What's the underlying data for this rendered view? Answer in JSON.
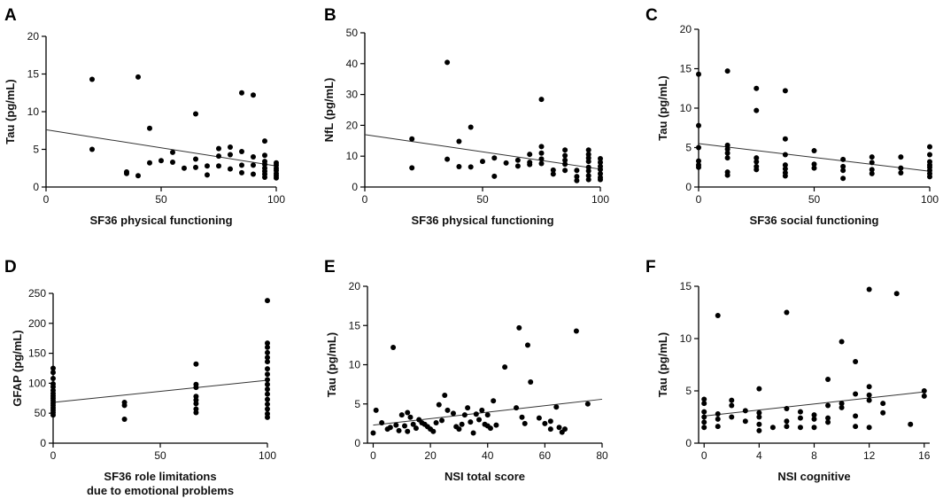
{
  "chart_data": [
    {
      "id": "A",
      "type": "scatter",
      "panel_label": "A",
      "xlabel": "SF36 physical functioning",
      "ylabel": "Tau  (pg/mL)",
      "xlim": [
        0,
        100
      ],
      "ylim": [
        0,
        20
      ],
      "xticks": [
        0,
        50,
        100
      ],
      "yticks": [
        0,
        5,
        10,
        15,
        20
      ],
      "trend": [
        [
          0,
          7.6
        ],
        [
          100,
          2.8
        ]
      ],
      "points": [
        [
          20,
          14.3
        ],
        [
          20,
          5
        ],
        [
          35,
          1.8
        ],
        [
          35,
          2
        ],
        [
          40,
          14.6
        ],
        [
          40,
          1.5
        ],
        [
          45,
          7.8
        ],
        [
          45,
          3.2
        ],
        [
          50,
          3.5
        ],
        [
          55,
          4.6
        ],
        [
          55,
          3.3
        ],
        [
          60,
          2.5
        ],
        [
          65,
          9.7
        ],
        [
          65,
          3.7
        ],
        [
          65,
          2.6
        ],
        [
          70,
          2.8
        ],
        [
          70,
          1.6
        ],
        [
          75,
          5.1
        ],
        [
          75,
          4.1
        ],
        [
          75,
          2.8
        ],
        [
          80,
          5.3
        ],
        [
          80,
          4.3
        ],
        [
          80,
          2.4
        ],
        [
          85,
          12.5
        ],
        [
          85,
          4.7
        ],
        [
          85,
          2.9
        ],
        [
          85,
          1.9
        ],
        [
          90,
          12.2
        ],
        [
          90,
          4
        ],
        [
          90,
          2.9
        ],
        [
          90,
          1.7
        ],
        [
          95,
          6.1
        ],
        [
          95,
          4.2
        ],
        [
          95,
          3.4
        ],
        [
          95,
          3
        ],
        [
          95,
          2.5
        ],
        [
          95,
          2.1
        ],
        [
          95,
          1.7
        ],
        [
          95,
          1.3
        ],
        [
          100,
          3.2
        ],
        [
          100,
          2.9
        ],
        [
          100,
          2.5
        ],
        [
          100,
          2.2
        ],
        [
          100,
          1.8
        ],
        [
          100,
          1.5
        ],
        [
          100,
          1.2
        ]
      ]
    },
    {
      "id": "B",
      "type": "scatter",
      "panel_label": "B",
      "xlabel": "SF36 physical functioning",
      "ylabel": "NfL (pg/mL)",
      "xlim": [
        0,
        100
      ],
      "ylim": [
        0,
        50
      ],
      "xticks": [
        0,
        50,
        100
      ],
      "yticks": [
        0,
        10,
        20,
        30,
        40,
        50
      ],
      "trend": [
        [
          0,
          17
        ],
        [
          100,
          5.8
        ]
      ],
      "points": [
        [
          20,
          15.6
        ],
        [
          20,
          6.2
        ],
        [
          35,
          40.4
        ],
        [
          35,
          9
        ],
        [
          40,
          14.8
        ],
        [
          40,
          6.6
        ],
        [
          45,
          19.4
        ],
        [
          45,
          6.5
        ],
        [
          50,
          8.3
        ],
        [
          55,
          9.4
        ],
        [
          55,
          3.5
        ],
        [
          60,
          7.8
        ],
        [
          65,
          8.7
        ],
        [
          65,
          6.8
        ],
        [
          70,
          10.6
        ],
        [
          70,
          8
        ],
        [
          70,
          7.3
        ],
        [
          75,
          28.4
        ],
        [
          75,
          13.1
        ],
        [
          75,
          11
        ],
        [
          75,
          9.1
        ],
        [
          75,
          7.6
        ],
        [
          80,
          5.5
        ],
        [
          80,
          4.2
        ],
        [
          85,
          12
        ],
        [
          85,
          10.2
        ],
        [
          85,
          8.7
        ],
        [
          85,
          7.4
        ],
        [
          85,
          5.4
        ],
        [
          90,
          5.4
        ],
        [
          90,
          3.4
        ],
        [
          90,
          2.1
        ],
        [
          95,
          12
        ],
        [
          95,
          10.6
        ],
        [
          95,
          9.4
        ],
        [
          95,
          8.3
        ],
        [
          95,
          6.4
        ],
        [
          95,
          5.2
        ],
        [
          95,
          3.7
        ],
        [
          95,
          2.4
        ],
        [
          100,
          9.2
        ],
        [
          100,
          8
        ],
        [
          100,
          6.7
        ],
        [
          100,
          5.7
        ],
        [
          100,
          4.3
        ],
        [
          100,
          3.1
        ],
        [
          100,
          2.4
        ]
      ]
    },
    {
      "id": "C",
      "type": "scatter",
      "panel_label": "C",
      "xlabel": "SF36 social functioning",
      "ylabel": "Tau  (pg/mL)",
      "xlim": [
        0,
        100
      ],
      "ylim": [
        0,
        20
      ],
      "xticks": [
        0,
        50,
        100
      ],
      "yticks": [
        0,
        5,
        10,
        15,
        20
      ],
      "trend": [
        [
          0,
          5.5
        ],
        [
          100,
          2
        ]
      ],
      "points": [
        [
          0,
          14.3
        ],
        [
          0,
          7.8
        ],
        [
          0,
          5
        ],
        [
          0,
          3.3
        ],
        [
          0,
          2.8
        ],
        [
          0,
          2.5
        ],
        [
          12.5,
          14.7
        ],
        [
          12.5,
          5.3
        ],
        [
          12.5,
          4.8
        ],
        [
          12.5,
          4.3
        ],
        [
          12.5,
          3.7
        ],
        [
          12.5,
          1.9
        ],
        [
          12.5,
          1.5
        ],
        [
          25,
          12.5
        ],
        [
          25,
          9.7
        ],
        [
          25,
          3.7
        ],
        [
          25,
          3.2
        ],
        [
          25,
          2.6
        ],
        [
          25,
          2.2
        ],
        [
          37.5,
          12.2
        ],
        [
          37.5,
          6.1
        ],
        [
          37.5,
          4.1
        ],
        [
          37.5,
          2.8
        ],
        [
          37.5,
          2.3
        ],
        [
          37.5,
          1.8
        ],
        [
          37.5,
          1.4
        ],
        [
          50,
          4.6
        ],
        [
          50,
          2.9
        ],
        [
          50,
          2.4
        ],
        [
          62.5,
          3.5
        ],
        [
          62.5,
          2.6
        ],
        [
          62.5,
          2.1
        ],
        [
          62.5,
          1.1
        ],
        [
          75,
          3.8
        ],
        [
          75,
          3.1
        ],
        [
          75,
          2.2
        ],
        [
          75,
          1.7
        ],
        [
          87.5,
          3.8
        ],
        [
          87.5,
          2.4
        ],
        [
          87.5,
          1.8
        ],
        [
          100,
          5.1
        ],
        [
          100,
          4.1
        ],
        [
          100,
          3.2
        ],
        [
          100,
          2.8
        ],
        [
          100,
          2.5
        ],
        [
          100,
          2.1
        ],
        [
          100,
          1.7
        ],
        [
          100,
          1.3
        ]
      ]
    },
    {
      "id": "D",
      "type": "scatter",
      "panel_label": "D",
      "xlabel": "SF36 role limitations",
      "xlabel2": "due to emotional problems",
      "ylabel": "GFAP (pg/mL)",
      "xlim": [
        0,
        100
      ],
      "ylim": [
        0,
        250
      ],
      "xticks": [
        0,
        50,
        100
      ],
      "yticks": [
        0,
        50,
        100,
        150,
        200,
        250
      ],
      "trend": [
        [
          0,
          68
        ],
        [
          100,
          105
        ]
      ],
      "points": [
        [
          0,
          125
        ],
        [
          0,
          118
        ],
        [
          0,
          108
        ],
        [
          0,
          99
        ],
        [
          0,
          94
        ],
        [
          0,
          88
        ],
        [
          0,
          83
        ],
        [
          0,
          79
        ],
        [
          0,
          75
        ],
        [
          0,
          71
        ],
        [
          0,
          67
        ],
        [
          0,
          63
        ],
        [
          0,
          59
        ],
        [
          0,
          55
        ],
        [
          0,
          51
        ],
        [
          0,
          47
        ],
        [
          33.3,
          68
        ],
        [
          33.3,
          63
        ],
        [
          33.3,
          40
        ],
        [
          66.7,
          132
        ],
        [
          66.7,
          98
        ],
        [
          66.7,
          93
        ],
        [
          66.7,
          78
        ],
        [
          66.7,
          72
        ],
        [
          66.7,
          66
        ],
        [
          66.7,
          57
        ],
        [
          66.7,
          51
        ],
        [
          100,
          238
        ],
        [
          100,
          167
        ],
        [
          100,
          160
        ],
        [
          100,
          151
        ],
        [
          100,
          143
        ],
        [
          100,
          136
        ],
        [
          100,
          124
        ],
        [
          100,
          115
        ],
        [
          100,
          106
        ],
        [
          100,
          98
        ],
        [
          100,
          90
        ],
        [
          100,
          82
        ],
        [
          100,
          73
        ],
        [
          100,
          65
        ],
        [
          100,
          57
        ],
        [
          100,
          49
        ],
        [
          100,
          43
        ]
      ]
    },
    {
      "id": "E",
      "type": "scatter",
      "panel_label": "E",
      "xlabel": "NSI total score",
      "ylabel": "Tau  (pg/mL)",
      "xlim": [
        -2,
        80
      ],
      "ylim": [
        0,
        20
      ],
      "xticks": [
        0,
        20,
        40,
        60,
        80
      ],
      "yticks": [
        0,
        5,
        10,
        15,
        20
      ],
      "trend": [
        [
          0,
          2.3
        ],
        [
          80,
          5.6
        ]
      ],
      "points": [
        [
          0,
          1.3
        ],
        [
          1,
          4.2
        ],
        [
          3,
          2.6
        ],
        [
          5,
          1.8
        ],
        [
          6,
          2
        ],
        [
          7,
          12.2
        ],
        [
          8,
          2.3
        ],
        [
          9,
          1.6
        ],
        [
          10,
          3.6
        ],
        [
          11,
          2.2
        ],
        [
          12,
          3.9
        ],
        [
          12,
          1.5
        ],
        [
          13,
          3.3
        ],
        [
          14,
          2.4
        ],
        [
          15,
          1.9
        ],
        [
          16,
          3
        ],
        [
          17,
          2.6
        ],
        [
          18,
          2.4
        ],
        [
          19,
          2.1
        ],
        [
          20,
          1.8
        ],
        [
          21,
          1.5
        ],
        [
          22,
          2.6
        ],
        [
          23,
          4.9
        ],
        [
          24,
          2.9
        ],
        [
          25,
          6.1
        ],
        [
          26,
          4.2
        ],
        [
          28,
          3.8
        ],
        [
          29,
          2.1
        ],
        [
          30,
          1.8
        ],
        [
          31,
          2.4
        ],
        [
          32,
          3.6
        ],
        [
          33,
          4.5
        ],
        [
          34,
          2.7
        ],
        [
          35,
          1.3
        ],
        [
          36,
          3.7
        ],
        [
          37,
          3
        ],
        [
          38,
          4.2
        ],
        [
          39,
          2.4
        ],
        [
          40,
          3.6
        ],
        [
          40,
          2.2
        ],
        [
          41,
          1.9
        ],
        [
          42,
          5.4
        ],
        [
          43,
          2.3
        ],
        [
          46,
          9.7
        ],
        [
          50,
          4.5
        ],
        [
          51,
          14.7
        ],
        [
          52,
          3.3
        ],
        [
          53,
          2.5
        ],
        [
          54,
          12.5
        ],
        [
          55,
          7.8
        ],
        [
          58,
          3.2
        ],
        [
          60,
          2.5
        ],
        [
          62,
          2.8
        ],
        [
          62,
          1.8
        ],
        [
          64,
          4.6
        ],
        [
          65,
          2
        ],
        [
          66,
          1.4
        ],
        [
          67,
          1.8
        ],
        [
          71,
          14.3
        ],
        [
          75,
          5
        ]
      ]
    },
    {
      "id": "F",
      "type": "scatter",
      "panel_label": "F",
      "xlabel": "NSI cognitive",
      "ylabel": "Tau  (pg/mL)",
      "xlim": [
        -0.4,
        16.4
      ],
      "ylim": [
        0,
        15
      ],
      "xticks": [
        0,
        4,
        8,
        12,
        16
      ],
      "yticks": [
        0,
        5,
        10,
        15
      ],
      "trend": [
        [
          0,
          2.6
        ],
        [
          16,
          4.9
        ]
      ],
      "points": [
        [
          0,
          4.2
        ],
        [
          0,
          3.8
        ],
        [
          0,
          3
        ],
        [
          0,
          2.5
        ],
        [
          0,
          2
        ],
        [
          0,
          1.5
        ],
        [
          1,
          12.2
        ],
        [
          1,
          2.8
        ],
        [
          1,
          2.3
        ],
        [
          1,
          1.6
        ],
        [
          2,
          4.1
        ],
        [
          2,
          3.6
        ],
        [
          2,
          2.5
        ],
        [
          3,
          3.1
        ],
        [
          3,
          2.1
        ],
        [
          4,
          5.2
        ],
        [
          4,
          2.9
        ],
        [
          4,
          2.5
        ],
        [
          4,
          1.8
        ],
        [
          4,
          1.2
        ],
        [
          5,
          1.5
        ],
        [
          6,
          12.5
        ],
        [
          6,
          3.3
        ],
        [
          6,
          2.1
        ],
        [
          6,
          1.6
        ],
        [
          7,
          3
        ],
        [
          7,
          2.4
        ],
        [
          7,
          1.5
        ],
        [
          8,
          2.7
        ],
        [
          8,
          2.3
        ],
        [
          8,
          1.5
        ],
        [
          9,
          6.1
        ],
        [
          9,
          3.6
        ],
        [
          9,
          2.4
        ],
        [
          9,
          2
        ],
        [
          10,
          9.7
        ],
        [
          10,
          3.4
        ],
        [
          10,
          3.8
        ],
        [
          11,
          7.8
        ],
        [
          11,
          4.7
        ],
        [
          11,
          2.6
        ],
        [
          11,
          1.6
        ],
        [
          12,
          14.7
        ],
        [
          12,
          5.4
        ],
        [
          12,
          4.6
        ],
        [
          12,
          4.1
        ],
        [
          12,
          1.5
        ],
        [
          13,
          3.8
        ],
        [
          13,
          2.9
        ],
        [
          14,
          14.3
        ],
        [
          15,
          1.8
        ],
        [
          16,
          5
        ],
        [
          16,
          4.5
        ]
      ]
    }
  ]
}
